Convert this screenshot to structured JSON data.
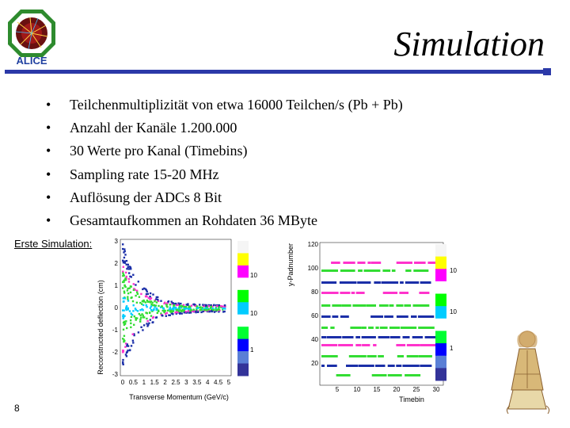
{
  "logo": {
    "text": "ALICE"
  },
  "slide": {
    "title": "Simulation",
    "bullets": [
      "Teilchenmultiplizität von etwa 16000 Teilchen/s (Pb + Pb)",
      "Anzahl der Kanäle 1.200.000",
      "30 Werte pro Kanal (Timebins)",
      "Sampling rate 15-20 MHz",
      "Auflösung der ADCs 8 Bit",
      "Gesamtaufkommen an Rohdaten 36 MByte"
    ],
    "subheading": "Erste Simulation:",
    "page_number": "8",
    "bullet_glyph": "•"
  },
  "plot_left": {
    "ylabel": "Reconstructed deflection (cm)",
    "xlabel": "Transverse Momentum (GeV/c)",
    "xticks": [
      "0",
      "0.5",
      "1",
      "1.5",
      "2",
      "2.5",
      "3",
      "3.5",
      "4",
      "4.5",
      "5"
    ],
    "yticks": [
      "3",
      "2",
      "1",
      "0",
      "-1",
      "-2",
      "-3"
    ],
    "colorbar_labels": [
      "10",
      "10",
      "1"
    ]
  },
  "plot_right": {
    "ylabel": "y-Padnumber",
    "xlabel": "Timebin",
    "xticks": [
      "5",
      "10",
      "15",
      "20",
      "25",
      "30"
    ],
    "yticks": [
      "120",
      "100",
      "80",
      "60",
      "40",
      "20"
    ],
    "colorbar_labels": [
      "10",
      "10",
      "1"
    ]
  },
  "colors": {
    "rule": "#2b39a8",
    "colorbar": [
      "#f5f5f5",
      "#ffff00",
      "#ff00ff",
      "#ffffff",
      "#00ff00",
      "#00ccff",
      "#ffffff",
      "#00ff33",
      "#0000ff",
      "#5a7fd6",
      "#333399"
    ]
  }
}
